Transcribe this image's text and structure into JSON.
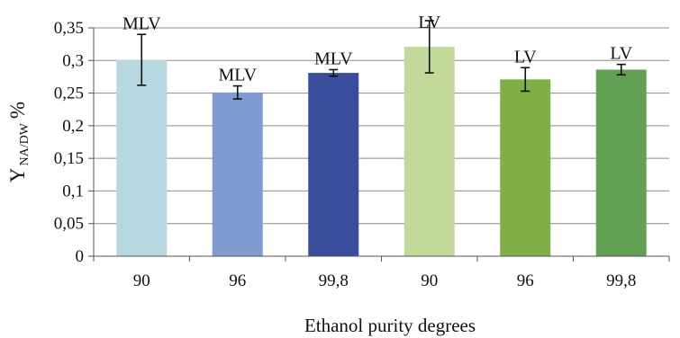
{
  "chart_data": {
    "type": "bar",
    "categories": [
      "90",
      "96",
      "99,8",
      "90",
      "96",
      "99,8"
    ],
    "values": [
      0.301,
      0.251,
      0.281,
      0.321,
      0.271,
      0.286
    ],
    "error": [
      0.039,
      0.01,
      0.005,
      0.04,
      0.018,
      0.008
    ],
    "bar_labels": [
      "MLV",
      "MLV",
      "MLV",
      "LV",
      "LV",
      "LV"
    ],
    "bar_colors": [
      "#b7d7e1",
      "#7f9bd1",
      "#3a4c9c",
      "#c3d99a",
      "#80ae47",
      "#62a154"
    ],
    "xlabel": "Ethanol purity degrees",
    "ylabel": {
      "main": "Y",
      "sub": "NA/DW",
      "unit": "%"
    },
    "ylim": [
      0,
      0.35
    ],
    "yticks": [
      "0",
      "0,05",
      "0,1",
      "0,15",
      "0,2",
      "0,25",
      "0,3",
      "0,35"
    ],
    "grid": true
  }
}
